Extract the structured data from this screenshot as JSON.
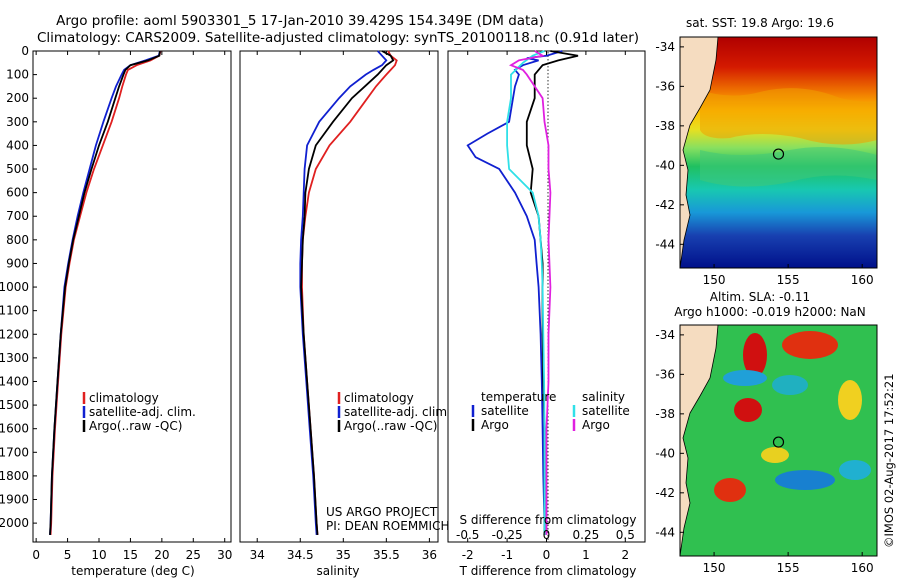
{
  "header": {
    "title_line1": "Argo profile: aoml 5903301_5 17-Jan-2010 39.429S 154.349E (DM data)",
    "title_line2": "Climatology: CARS2009. Satellite-adjusted climatology: synTS_20100118.nc (0.91d later)"
  },
  "colors": {
    "climatology": "#e02020",
    "satellite": "#1020d0",
    "argo": "#000000",
    "salinity_satellite": "#30e0e8",
    "salinity_argo": "#e020e0"
  },
  "chart_data": [
    {
      "type": "line",
      "panel": "temperature",
      "xlabel": "temperature (deg C)",
      "ylabel": "",
      "xlim": [
        -0.5,
        31
      ],
      "ylim": [
        2080,
        0
      ],
      "xticks": [
        0,
        5,
        10,
        15,
        20,
        25,
        30
      ],
      "yticks": [
        0,
        100,
        200,
        300,
        400,
        500,
        600,
        700,
        800,
        900,
        1000,
        1100,
        1200,
        1300,
        1400,
        1500,
        1600,
        1700,
        1800,
        1900,
        2000
      ],
      "legend": [
        "climatology",
        "satellite-adj. clim.",
        "Argo(..raw -QC)"
      ],
      "legend_position": "lower-center",
      "series": [
        {
          "name": "climatology",
          "depth": [
            0,
            20,
            40,
            60,
            80,
            100,
            150,
            200,
            300,
            400,
            500,
            600,
            700,
            800,
            900,
            1000,
            1200,
            1400,
            1600,
            1800,
            2000,
            2050
          ],
          "values": [
            19.8,
            19.6,
            18.2,
            16.0,
            14.6,
            14.3,
            13.7,
            13.2,
            12.0,
            10.6,
            9.2,
            8.0,
            7.0,
            6.0,
            5.3,
            4.7,
            4.0,
            3.5,
            3.0,
            2.6,
            2.4,
            2.3
          ]
        },
        {
          "name": "satellite-adj. clim.",
          "depth": [
            0,
            20,
            40,
            60,
            80,
            100,
            150,
            200,
            300,
            400,
            500,
            600,
            700,
            800,
            900,
            1000,
            1200,
            1400,
            1600,
            1800,
            2000,
            2050
          ],
          "values": [
            19.7,
            19.5,
            17.4,
            15.0,
            14.0,
            13.6,
            12.7,
            12.0,
            10.7,
            9.5,
            8.5,
            7.5,
            6.6,
            5.8,
            5.1,
            4.5,
            3.9,
            3.4,
            2.9,
            2.5,
            2.3,
            2.2
          ]
        },
        {
          "name": "Argo(..raw -QC)",
          "depth": [
            0,
            20,
            40,
            60,
            80,
            100,
            150,
            200,
            300,
            400,
            500,
            600,
            700,
            800,
            900,
            1000,
            1200,
            1400,
            1600,
            1800,
            2000,
            2050
          ],
          "values": [
            19.7,
            19.6,
            17.8,
            15.0,
            14.2,
            13.9,
            13.2,
            12.6,
            11.4,
            10.0,
            8.8,
            7.7,
            6.8,
            5.9,
            5.2,
            4.6,
            3.9,
            3.4,
            2.9,
            2.5,
            2.3,
            2.2
          ]
        }
      ]
    },
    {
      "type": "line",
      "panel": "salinity",
      "xlabel": "salinity",
      "ylabel": "",
      "xlim": [
        33.8,
        36.1
      ],
      "ylim": [
        2080,
        0
      ],
      "xticks": [
        34,
        34.5,
        35,
        35.5,
        36
      ],
      "legend": [
        "climatology",
        "satellite-adj. clim.",
        "Argo(..raw -QC)"
      ],
      "legend_position": "lower-center",
      "annotation": [
        "US ARGO PROJECT",
        "PI: DEAN ROEMMICH"
      ],
      "series": [
        {
          "name": "climatology",
          "depth": [
            0,
            20,
            40,
            60,
            80,
            100,
            150,
            200,
            300,
            400,
            500,
            600,
            700,
            800,
            900,
            1000,
            1200,
            1400,
            1600,
            1800,
            2000,
            2050
          ],
          "values": [
            35.52,
            35.55,
            35.62,
            35.6,
            35.55,
            35.5,
            35.38,
            35.28,
            35.08,
            34.84,
            34.68,
            34.6,
            34.56,
            34.53,
            34.52,
            34.52,
            34.54,
            34.58,
            34.62,
            34.66,
            34.69,
            34.7
          ]
        },
        {
          "name": "satellite-adj. clim.",
          "depth": [
            0,
            20,
            40,
            60,
            80,
            100,
            150,
            200,
            300,
            400,
            500,
            600,
            700,
            800,
            900,
            1000,
            1200,
            1400,
            1600,
            1800,
            2000,
            2050
          ],
          "values": [
            35.4,
            35.45,
            35.5,
            35.45,
            35.35,
            35.26,
            35.08,
            34.95,
            34.72,
            34.58,
            34.55,
            34.54,
            34.53,
            34.51,
            34.5,
            34.5,
            34.53,
            34.57,
            34.61,
            34.65,
            34.68,
            34.69
          ]
        },
        {
          "name": "Argo(..raw -QC)",
          "depth": [
            0,
            20,
            40,
            60,
            80,
            100,
            150,
            200,
            300,
            400,
            500,
            600,
            700,
            800,
            900,
            1000,
            1200,
            1400,
            1600,
            1800,
            2000,
            2050
          ],
          "values": [
            35.45,
            35.55,
            35.58,
            35.5,
            35.45,
            35.4,
            35.25,
            35.1,
            34.88,
            34.68,
            34.6,
            34.56,
            34.55,
            34.53,
            34.52,
            34.51,
            34.54,
            34.58,
            34.62,
            34.66,
            34.69,
            34.7
          ]
        }
      ]
    },
    {
      "type": "line",
      "panel": "difference",
      "xlabel": "T difference from climatology",
      "xlabel_secondary": "S difference from climatology",
      "xlim": [
        -2.5,
        2.5
      ],
      "ylim": [
        2080,
        0
      ],
      "xticks": [
        -2,
        -1,
        0,
        1,
        2
      ],
      "xticks_secondary": [
        "-0.5",
        "-0.25",
        "0",
        "0.25",
        "0.5"
      ],
      "xticks_secondary_positions": [
        -2,
        -1,
        0,
        1,
        2
      ],
      "legend_groups": [
        {
          "title": "temperature",
          "entries": [
            "satellite",
            "Argo"
          ]
        },
        {
          "title": "salinity",
          "entries": [
            "satellite",
            "Argo"
          ]
        }
      ],
      "series": [
        {
          "name": "temperature satellite",
          "depth": [
            0,
            20,
            30,
            40,
            60,
            80,
            100,
            150,
            200,
            300,
            350,
            400,
            450,
            500,
            600,
            700,
            800,
            900,
            1000,
            1200,
            1400,
            1600,
            1800,
            2000,
            2050
          ],
          "values": [
            0.4,
            0.0,
            -0.5,
            -0.2,
            -0.6,
            -0.8,
            -0.7,
            -0.8,
            -0.85,
            -0.95,
            -1.5,
            -2.0,
            -1.8,
            -1.2,
            -0.8,
            -0.5,
            -0.3,
            -0.25,
            -0.2,
            -0.15,
            -0.12,
            -0.1,
            -0.08,
            -0.05,
            -0.05
          ]
        },
        {
          "name": "temperature Argo",
          "depth": [
            0,
            20,
            40,
            60,
            80,
            100,
            150,
            200,
            300,
            400,
            500,
            600,
            700,
            800,
            900,
            1000,
            1200,
            1400,
            1600,
            1800,
            2000,
            2050
          ],
          "values": [
            0.1,
            0.8,
            0.3,
            -0.1,
            -0.2,
            -0.3,
            -0.3,
            -0.3,
            -0.5,
            -0.5,
            -0.35,
            -0.4,
            -0.2,
            -0.15,
            -0.1,
            -0.1,
            -0.1,
            -0.08,
            -0.05,
            -0.05,
            -0.05,
            -0.05
          ]
        },
        {
          "name": "salinity satellite",
          "depth": [
            0,
            20,
            50,
            100,
            200,
            300,
            400,
            500,
            600,
            700,
            800,
            900,
            1000,
            1200,
            1400,
            1600,
            1800,
            2000,
            2050
          ],
          "values": [
            -0.05,
            -0.35,
            -0.6,
            -0.9,
            -0.9,
            -1.0,
            -1.0,
            -0.95,
            -0.35,
            -0.2,
            -0.15,
            -0.12,
            -0.1,
            -0.08,
            -0.06,
            -0.05,
            -0.05,
            -0.05,
            -0.05
          ]
        },
        {
          "name": "salinity Argo",
          "depth": [
            0,
            20,
            40,
            60,
            80,
            100,
            150,
            200,
            300,
            400,
            500,
            600,
            800,
            1000,
            1200,
            1400,
            1600,
            1800,
            2000,
            2050
          ],
          "values": [
            -0.3,
            -0.1,
            -0.7,
            -0.9,
            -0.6,
            -0.5,
            -0.3,
            -0.1,
            -0.05,
            0.05,
            0.05,
            0.1,
            0.05,
            0.1,
            0.05,
            0.05,
            0.0,
            0.0,
            0.0,
            0.0
          ]
        }
      ]
    },
    {
      "type": "heatmap",
      "panel": "sst_map",
      "title": "sat. SST: 19.8 Argo: 19.6",
      "xticks": [
        150,
        155,
        160
      ],
      "yticks": [
        -34,
        -36,
        -38,
        -40,
        -42,
        -44
      ],
      "xlim": [
        147.7,
        161
      ],
      "ylim": [
        -45.2,
        -33.5
      ],
      "marker": {
        "lon": 154.35,
        "lat": -39.43
      }
    },
    {
      "type": "heatmap",
      "panel": "sla_map",
      "title": "Altim. SLA: -0.11",
      "subtitle": "Argo h1000: -0.019 h2000: NaN",
      "xticks": [
        150,
        155,
        160
      ],
      "yticks": [
        -34,
        -36,
        -38,
        -40,
        -42,
        -44
      ],
      "xlim": [
        147.7,
        161
      ],
      "ylim": [
        -45.2,
        -33.5
      ],
      "marker": {
        "lon": 154.35,
        "lat": -39.43
      }
    }
  ],
  "footer_credit": "©IMOS 02-Aug-2017 17:52:21"
}
